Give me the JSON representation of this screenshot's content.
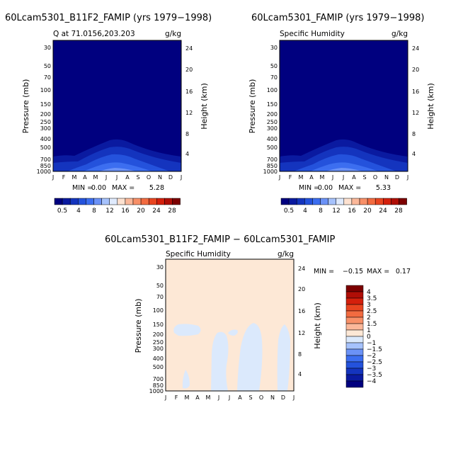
{
  "chart_data": [
    {
      "type": "contour",
      "title": "60Lcam5301_B11F2_FAMIP (yrs 1979−1998)",
      "subtitle": "Q at 71.0156,203.203",
      "units": "g/kg",
      "ylabel": "Pressure (mb)",
      "ylabel_right": "Height (km)",
      "months": [
        "J",
        "F",
        "M",
        "A",
        "M",
        "J",
        "J",
        "A",
        "S",
        "O",
        "N",
        "D",
        "J"
      ],
      "pressure_ticks": [
        "30",
        "50",
        "70",
        "100",
        "150",
        "200",
        "250",
        "300",
        "400",
        "500",
        "700",
        "850",
        "1000"
      ],
      "height_ticks": [
        "24",
        "20",
        "16",
        "12",
        "8",
        "4"
      ],
      "min_label": "MIN =",
      "min_value": "0.00",
      "max_label": "MAX =",
      "max_value": "5.28",
      "legend_labels": [
        "0.5",
        "4",
        "8",
        "12",
        "16",
        "20",
        "24",
        "28"
      ],
      "legend_colors": [
        "#00007f",
        "#0a1aa0",
        "#1434be",
        "#2452dc",
        "#3c6ef0",
        "#6b92f7",
        "#a6c2fc",
        "#dfeafd",
        "#fde1d0",
        "#fbb89a",
        "#f89068",
        "#f26b40",
        "#e84520",
        "#d4200c",
        "#b00e06",
        "#7c0000"
      ]
    },
    {
      "type": "contour",
      "title": "60Lcam5301_FAMIP (yrs 1979−1998)",
      "subtitle": "Specific Humidity",
      "units": "g/kg",
      "ylabel": "Pressure (mb)",
      "ylabel_right": "Height (km)",
      "months": [
        "J",
        "F",
        "M",
        "A",
        "M",
        "J",
        "J",
        "A",
        "S",
        "O",
        "N",
        "D",
        "J"
      ],
      "pressure_ticks": [
        "30",
        "50",
        "70",
        "100",
        "150",
        "200",
        "250",
        "300",
        "400",
        "500",
        "700",
        "850",
        "1000"
      ],
      "height_ticks": [
        "24",
        "20",
        "16",
        "12",
        "8",
        "4"
      ],
      "min_label": "MIN =",
      "min_value": "0.00",
      "max_label": "MAX =",
      "max_value": "5.33",
      "legend_labels": [
        "0.5",
        "4",
        "8",
        "12",
        "16",
        "20",
        "24",
        "28"
      ],
      "legend_colors": [
        "#00007f",
        "#0a1aa0",
        "#1434be",
        "#2452dc",
        "#3c6ef0",
        "#6b92f7",
        "#a6c2fc",
        "#dfeafd",
        "#fde1d0",
        "#fbb89a",
        "#f89068",
        "#f26b40",
        "#e84520",
        "#d4200c",
        "#b00e06",
        "#7c0000"
      ]
    },
    {
      "type": "contour",
      "title": "60Lcam5301_B11F2_FAMIP − 60Lcam5301_FAMIP",
      "subtitle": "Specific Humidity",
      "units": "g/kg",
      "ylabel": "Pressure (mb)",
      "ylabel_right": "Height (km)",
      "months": [
        "J",
        "F",
        "M",
        "A",
        "M",
        "J",
        "J",
        "A",
        "S",
        "O",
        "N",
        "D",
        "J"
      ],
      "pressure_ticks": [
        "30",
        "50",
        "70",
        "100",
        "150",
        "200",
        "250",
        "300",
        "400",
        "500",
        "700",
        "850",
        "1000"
      ],
      "height_ticks": [
        "24",
        "20",
        "16",
        "12",
        "8",
        "4"
      ],
      "min_label": "MIN =",
      "min_value": "−0.15",
      "max_label": "MAX =",
      "max_value": "0.17",
      "legend_labels": [
        "4",
        "3.5",
        "3",
        "2.5",
        "2",
        "1.5",
        "1",
        "0",
        "−1",
        "−1.5",
        "−2",
        "−2.5",
        "−3",
        "−3.5",
        "−4"
      ],
      "legend_colors": [
        "#7c0000",
        "#b00e06",
        "#d4200c",
        "#e84520",
        "#f26b40",
        "#f89068",
        "#fbb89a",
        "#fde8d6",
        "#dbe9fc",
        "#a6c2fc",
        "#6b92f7",
        "#3c6ef0",
        "#2452dc",
        "#1434be",
        "#0a1aa0",
        "#00007f"
      ]
    }
  ]
}
